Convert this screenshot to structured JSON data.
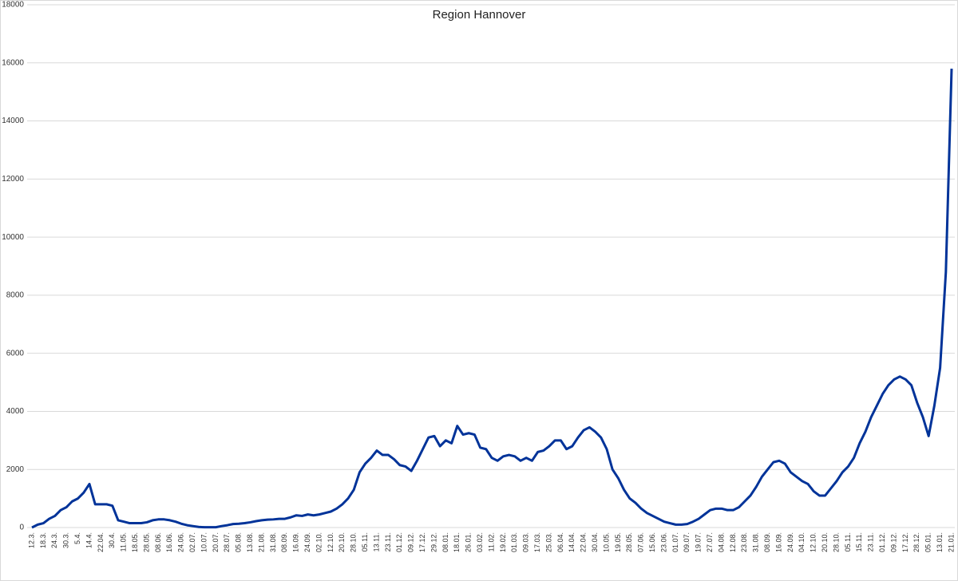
{
  "chart_data": {
    "type": "line",
    "title": "Region Hannover",
    "categories": [
      "12.3.",
      null,
      "18.3.",
      null,
      "24.3.",
      null,
      "30.3.",
      null,
      "5.4.",
      null,
      "14.4.",
      null,
      "22.04.",
      null,
      "30.4.",
      null,
      "11.05.",
      null,
      "18.05.",
      null,
      "28.05.",
      null,
      "08.06.",
      null,
      "16.06.",
      null,
      "24.06.",
      null,
      "02.07.",
      null,
      "10.07.",
      null,
      "20.07.",
      null,
      "28.07.",
      null,
      "05.08.",
      null,
      "13.08.",
      null,
      "21.08.",
      null,
      "31.08.",
      null,
      "08.09.",
      null,
      "16.09.",
      null,
      "24.09.",
      null,
      "02.10.",
      null,
      "12.10.",
      null,
      "20.10.",
      null,
      "28.10.",
      null,
      "05.11.",
      null,
      "13.11.",
      null,
      "23.11.",
      null,
      "01.12.",
      null,
      "09.12.",
      null,
      "17.12.",
      null,
      "29.12.",
      null,
      "08.01.",
      null,
      "18.01.",
      null,
      "26.01.",
      null,
      "03.02.",
      null,
      "11.02.",
      null,
      "19.02.",
      null,
      "01.03.",
      null,
      "09.03.",
      null,
      "17.03.",
      null,
      "25.03.",
      null,
      "06.04.",
      null,
      "14.04.",
      null,
      "22.04.",
      null,
      "30.04.",
      null,
      "10.05.",
      null,
      "19.05.",
      null,
      "28.05.",
      null,
      "07.06.",
      null,
      "15.06.",
      null,
      "23.06.",
      null,
      "01.07.",
      null,
      "09.07.",
      null,
      "19.07.",
      null,
      "27.07.",
      null,
      "04.08.",
      null,
      "12.08.",
      null,
      "23.08.",
      null,
      "31.08.",
      null,
      "08.09.",
      null,
      "16.09.",
      null,
      "24.09.",
      null,
      "04.10.",
      null,
      "12.10.",
      null,
      "20.10.",
      null,
      "28.10.",
      null,
      "05.11.",
      null,
      "15.11.",
      null,
      "23.11.",
      null,
      "01.12.",
      null,
      "09.12.",
      null,
      "17.12.",
      null,
      "28.12.",
      null,
      "05.01.",
      null,
      "13.01.",
      null,
      "21.01."
    ],
    "series": [
      {
        "name": "Region Hannover",
        "color": "#003399",
        "values": [
          0,
          100,
          150,
          300,
          400,
          600,
          700,
          900,
          1000,
          1200,
          1500,
          800,
          800,
          800,
          750,
          250,
          200,
          150,
          150,
          150,
          180,
          250,
          280,
          280,
          250,
          200,
          130,
          80,
          50,
          20,
          10,
          10,
          10,
          50,
          80,
          120,
          130,
          150,
          180,
          220,
          250,
          270,
          280,
          300,
          300,
          350,
          420,
          400,
          450,
          420,
          450,
          500,
          550,
          650,
          800,
          1000,
          1300,
          1900,
          2200,
          2400,
          2650,
          2500,
          2500,
          2350,
          2150,
          2100,
          1950,
          2300,
          2700,
          3100,
          3150,
          2800,
          3000,
          2900,
          3500,
          3200,
          3250,
          3200,
          2750,
          2700,
          2400,
          2300,
          2450,
          2500,
          2450,
          2300,
          2400,
          2300,
          2600,
          2650,
          2800,
          3000,
          3000,
          2700,
          2800,
          3100,
          3350,
          3450,
          3300,
          3100,
          2700,
          2000,
          1700,
          1300,
          1000,
          850,
          650,
          500,
          400,
          300,
          200,
          150,
          100,
          100,
          120,
          200,
          300,
          450,
          600,
          650,
          650,
          600,
          600,
          700,
          900,
          1100,
          1400,
          1750,
          2000,
          2250,
          2300,
          2200,
          1900,
          1750,
          1600,
          1500,
          1250,
          1100,
          1100,
          1350,
          1600,
          1900,
          2100,
          2400,
          2900,
          3300,
          3800,
          4200,
          4600,
          4900,
          5100,
          5200,
          5100,
          4900,
          4300,
          3800,
          3150,
          4200,
          5500,
          8800,
          15800
        ]
      }
    ],
    "ylim": [
      0,
      18000
    ],
    "yticks": [
      0,
      2000,
      4000,
      6000,
      8000,
      10000,
      12000,
      14000,
      16000,
      18000
    ],
    "grid": true
  }
}
